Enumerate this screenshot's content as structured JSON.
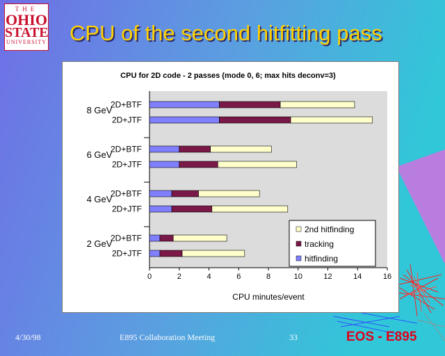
{
  "slide": {
    "title": "CPU of the second hitfitting pass",
    "logo": {
      "line1": "THE",
      "line2": "OHIO",
      "line3": "STATE",
      "line4": "UNIVERSITY"
    },
    "footer": {
      "date": "4/30/98",
      "meeting": "E895 Collaboration Meeting",
      "page": "33",
      "experiment": "EOS - E895"
    },
    "colors": {
      "background_left": "#6f6fe6",
      "background_right": "#30c8d8",
      "title": "#ffd000",
      "experiment": "#e0001b"
    }
  },
  "chart_data": {
    "type": "bar",
    "orientation": "horizontal",
    "stacked": true,
    "title": "CPU for 2D code - 2 passes (mode 0, 6; max hits deconv=3)",
    "xlabel": "CPU minutes/event",
    "xlim": [
      0,
      16
    ],
    "xticks": [
      0,
      2,
      4,
      6,
      8,
      10,
      12,
      14,
      16
    ],
    "groups": [
      {
        "label": "8 GeV",
        "bars": [
          {
            "label": "2D+BTF",
            "hitfinding": 4.7,
            "tracking": 4.1,
            "second_hitfinding": 5.0
          },
          {
            "label": "2D+JTF",
            "hitfinding": 4.7,
            "tracking": 4.8,
            "second_hitfinding": 5.5
          }
        ]
      },
      {
        "label": "6 GeV",
        "bars": [
          {
            "label": "2D+BTF",
            "hitfinding": 2.0,
            "tracking": 2.1,
            "second_hitfinding": 4.1
          },
          {
            "label": "2D+JTF",
            "hitfinding": 2.0,
            "tracking": 2.6,
            "second_hitfinding": 5.3
          }
        ]
      },
      {
        "label": "4 GeV",
        "bars": [
          {
            "label": "2D+BTF",
            "hitfinding": 1.5,
            "tracking": 1.8,
            "second_hitfinding": 4.1
          },
          {
            "label": "2D+JTF",
            "hitfinding": 1.5,
            "tracking": 2.7,
            "second_hitfinding": 5.1
          }
        ]
      },
      {
        "label": "2 GeV",
        "bars": [
          {
            "label": "2D+BTF",
            "hitfinding": 0.7,
            "tracking": 0.9,
            "second_hitfinding": 3.6
          },
          {
            "label": "2D+JTF",
            "hitfinding": 0.7,
            "tracking": 1.5,
            "second_hitfinding": 4.2
          }
        ]
      }
    ],
    "series": [
      {
        "key": "hitfinding",
        "name": "hitfinding",
        "color": "#8080ff"
      },
      {
        "key": "tracking",
        "name": "tracking",
        "color": "#7a1848"
      },
      {
        "key": "second_hitfinding",
        "name": "2nd hitfinding",
        "color": "#ffffcc"
      }
    ],
    "legend": "bottom-right, inside plot",
    "plot_background": "#dcdcdc",
    "grid": false
  }
}
